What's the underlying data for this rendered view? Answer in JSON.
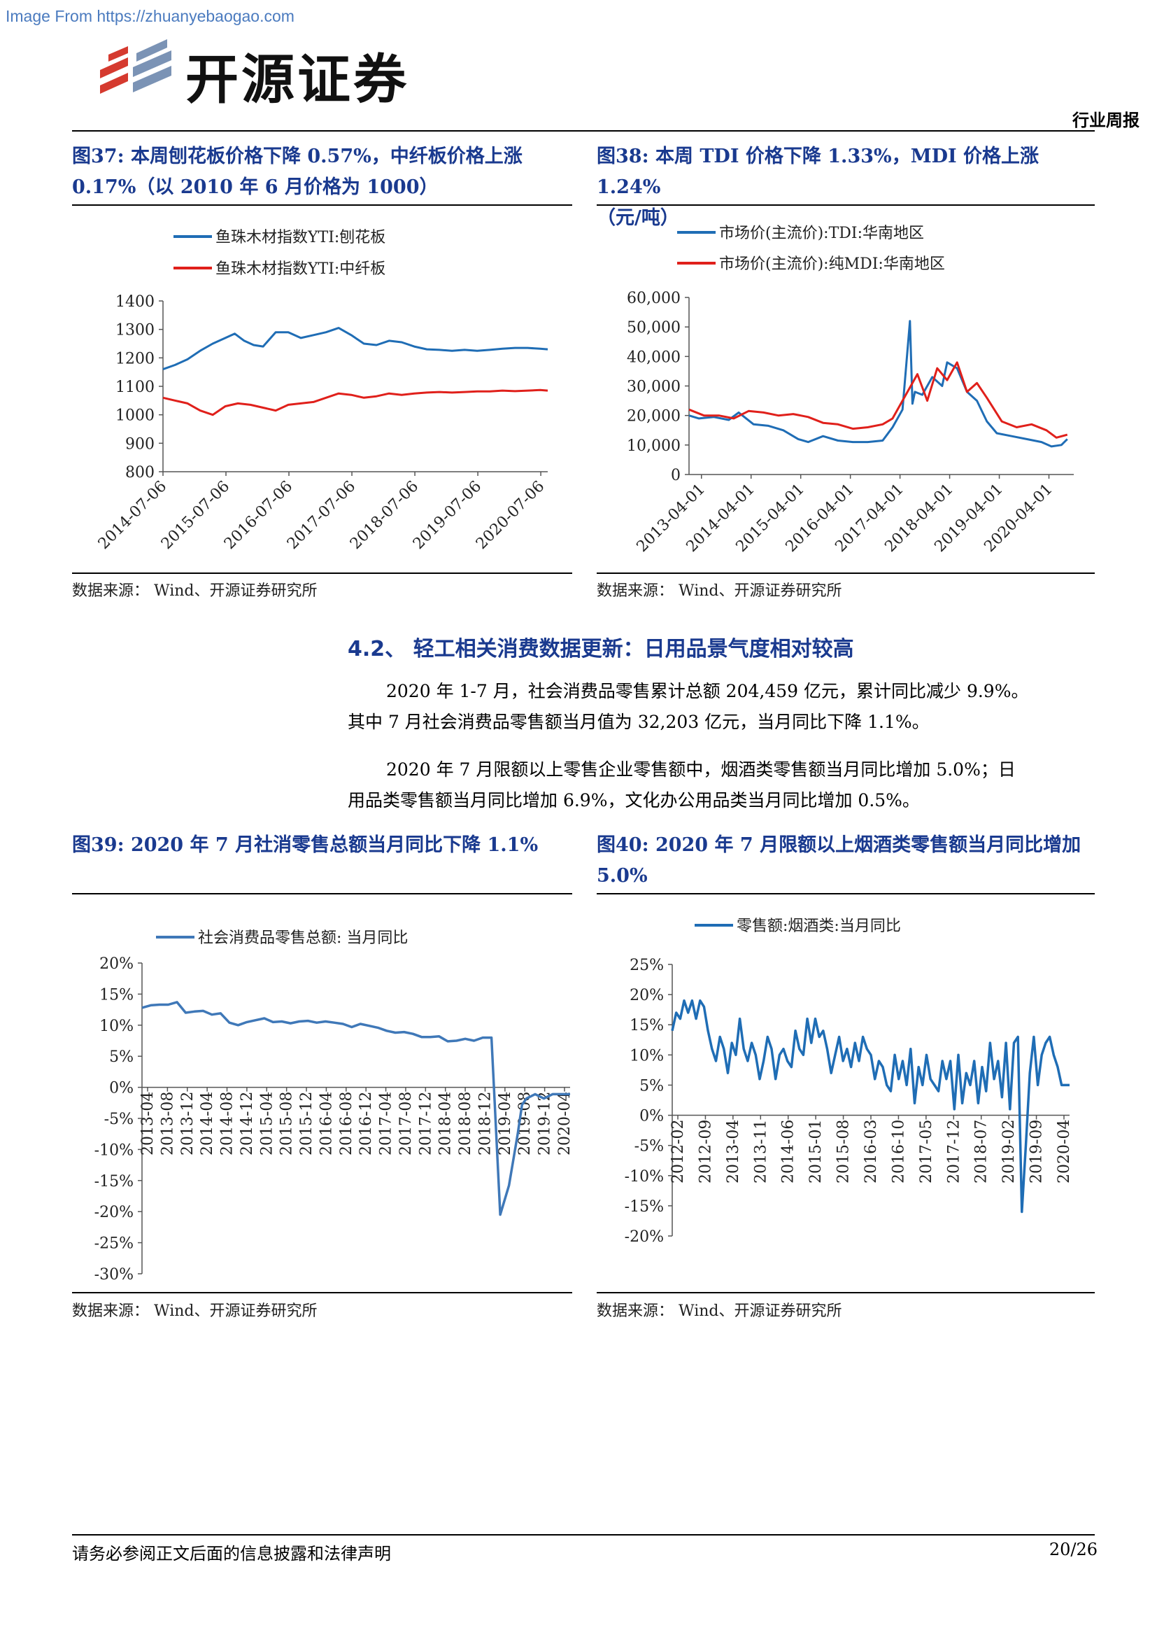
{
  "watermark": "Image From https://zhuanyebaogao.com",
  "brand": {
    "name": "开源证券"
  },
  "report_type": "行业周报",
  "figures": {
    "f37": {
      "title_l1": "图37:  本周刨花板价格下降  0.57%，中纤板价格上涨",
      "title_l2": "0.17%（以 2010 年 6 月价格为 1000）",
      "source": "数据来源： Wind、开源证券研究所"
    },
    "f38": {
      "title_l1": "图38:  本周 TDI 价格下降 1.33%，MDI 价格上涨 1.24%",
      "title_l2": "（元/吨）",
      "source": "数据来源： Wind、开源证券研究所"
    },
    "f39": {
      "title_l1": "图39:  2020 年 7 月社消零售总额当月同比下降 1.1%",
      "source": "数据来源： Wind、开源证券研究所"
    },
    "f40": {
      "title_l1": "图40:  2020 年 7 月限额以上烟酒类零售额当月同比增加",
      "title_l2": "5.0%",
      "source": "数据来源： Wind、开源证券研究所"
    }
  },
  "section": {
    "title": "4.2、  轻工相关消费数据更新：日用品景气度相对较高"
  },
  "paragraphs": {
    "p1_l1": "2020 年 1-7 月，社会消费品零售累计总额 204,459 亿元，累计同比减少 9.9%。",
    "p1_l2": "其中 7 月社会消费品零售额当月值为 32,203 亿元，当月同比下降 1.1%。",
    "p2_l1": "2020 年 7 月限额以上零售企业零售额中，烟酒类零售额当月同比增加 5.0%；日",
    "p2_l2": "用品类零售额当月同比增加 6.9%，文化办公用品类当月同比增加 0.5%。"
  },
  "footer": {
    "disclaimer": "请务必参阅正文后面的信息披露和法律声明",
    "page": "20/26"
  },
  "chart_data": [
    {
      "id": "fig37",
      "type": "line",
      "legend": [
        "鱼珠木材指数YTI:刨花板",
        "鱼珠木材指数YTI:中纤板"
      ],
      "colors": [
        "#1f6db5",
        "#e0201b"
      ],
      "yticks": [
        "1400",
        "1300",
        "1200",
        "1100",
        "1000",
        "900",
        "800"
      ],
      "ylim": [
        800,
        1400
      ],
      "xticks": [
        "2014-07-06",
        "2015-07-06",
        "2016-07-06",
        "2017-07-06",
        "2018-07-06",
        "2019-07-06",
        "2020-07-06"
      ],
      "xlim": [
        2014.51,
        2020.62
      ],
      "series": [
        {
          "name": "鱼珠木材指数YTI:刨花板",
          "x": [
            2014.51,
            2014.7,
            2014.9,
            2015.1,
            2015.3,
            2015.5,
            2015.65,
            2015.8,
            2015.95,
            2016.1,
            2016.3,
            2016.5,
            2016.7,
            2016.9,
            2017.1,
            2017.3,
            2017.5,
            2017.7,
            2017.9,
            2018.1,
            2018.3,
            2018.5,
            2018.7,
            2018.9,
            2019.1,
            2019.3,
            2019.5,
            2019.7,
            2019.9,
            2020.1,
            2020.3,
            2020.5,
            2020.62
          ],
          "y": [
            1160,
            1175,
            1195,
            1225,
            1250,
            1270,
            1285,
            1260,
            1245,
            1240,
            1290,
            1290,
            1270,
            1280,
            1290,
            1305,
            1280,
            1250,
            1245,
            1260,
            1255,
            1240,
            1230,
            1228,
            1225,
            1228,
            1225,
            1228,
            1232,
            1235,
            1235,
            1232,
            1230
          ]
        },
        {
          "name": "鱼珠木材指数YTI:中纤板",
          "x": [
            2014.51,
            2014.7,
            2014.9,
            2015.1,
            2015.3,
            2015.5,
            2015.7,
            2015.9,
            2016.1,
            2016.3,
            2016.5,
            2016.7,
            2016.9,
            2017.1,
            2017.3,
            2017.5,
            2017.7,
            2017.9,
            2018.1,
            2018.3,
            2018.5,
            2018.7,
            2018.9,
            2019.1,
            2019.3,
            2019.5,
            2019.7,
            2019.9,
            2020.1,
            2020.3,
            2020.5,
            2020.62
          ],
          "y": [
            1060,
            1050,
            1040,
            1015,
            1000,
            1030,
            1040,
            1035,
            1025,
            1015,
            1035,
            1040,
            1045,
            1060,
            1075,
            1070,
            1060,
            1065,
            1075,
            1070,
            1075,
            1078,
            1080,
            1078,
            1080,
            1082,
            1082,
            1085,
            1083,
            1085,
            1087,
            1085
          ]
        }
      ]
    },
    {
      "id": "fig38",
      "type": "line",
      "legend": [
        "市场价(主流价):TDI:华南地区",
        "市场价(主流价):纯MDI:华南地区"
      ],
      "colors": [
        "#1f6db5",
        "#e0201b"
      ],
      "yticks": [
        "60,000",
        "50,000",
        "40,000",
        "30,000",
        "20,000",
        "10,000",
        "0"
      ],
      "ylim": [
        0,
        60000
      ],
      "xticks": [
        "2013-04-01",
        "2014-04-01",
        "2015-04-01",
        "2016-04-01",
        "2017-04-01",
        "2018-04-01",
        "2019-04-01",
        "2020-04-01"
      ],
      "xlim": [
        2013.0,
        2020.75
      ],
      "series": [
        {
          "name": "市场价(主流价):TDI:华南地区",
          "x": [
            2013.0,
            2013.2,
            2013.5,
            2013.8,
            2014.0,
            2014.3,
            2014.6,
            2014.9,
            2015.2,
            2015.4,
            2015.7,
            2016.0,
            2016.3,
            2016.6,
            2016.9,
            2017.1,
            2017.3,
            2017.45,
            2017.5,
            2017.55,
            2017.7,
            2017.9,
            2018.1,
            2018.2,
            2018.4,
            2018.6,
            2018.8,
            2019.0,
            2019.2,
            2019.5,
            2019.8,
            2020.1,
            2020.3,
            2020.5,
            2020.62
          ],
          "y": [
            20000,
            19000,
            19500,
            18500,
            21000,
            17000,
            16500,
            15000,
            12000,
            11000,
            13000,
            11500,
            11000,
            11000,
            11500,
            16000,
            22000,
            52000,
            24000,
            28000,
            27000,
            33000,
            30000,
            38000,
            36000,
            28000,
            25000,
            18000,
            14000,
            13000,
            12000,
            11000,
            9500,
            10000,
            12000
          ]
        },
        {
          "name": "市场价(主流价):纯MDI:华南地区",
          "x": [
            2013.0,
            2013.3,
            2013.6,
            2013.9,
            2014.2,
            2014.5,
            2014.8,
            2015.1,
            2015.4,
            2015.7,
            2016.0,
            2016.3,
            2016.6,
            2016.9,
            2017.1,
            2017.4,
            2017.6,
            2017.8,
            2018.0,
            2018.2,
            2018.4,
            2018.6,
            2018.8,
            2019.0,
            2019.3,
            2019.6,
            2019.9,
            2020.2,
            2020.4,
            2020.62
          ],
          "y": [
            22000,
            20000,
            20000,
            19000,
            21500,
            21000,
            20000,
            20500,
            19500,
            17500,
            17000,
            15500,
            16000,
            17000,
            19000,
            28000,
            34000,
            25000,
            36000,
            32000,
            38000,
            28000,
            31000,
            26000,
            18000,
            16000,
            17000,
            15000,
            12500,
            13500
          ]
        }
      ]
    },
    {
      "id": "fig39",
      "type": "line",
      "legend": [
        "社会消费品零售总额: 当月同比"
      ],
      "colors": [
        "#3f78b8"
      ],
      "yticks": [
        "20%",
        "15%",
        "10%",
        "5%",
        "0%",
        "-5%",
        "-10%",
        "-15%",
        "-20%",
        "-25%",
        "-30%"
      ],
      "ylim": [
        -30,
        20
      ],
      "xticks": [
        "2013-04",
        "2013-08",
        "2013-12",
        "2014-04",
        "2014-08",
        "2014-12",
        "2015-04",
        "2015-08",
        "2015-12",
        "2016-04",
        "2016-08",
        "2016-12",
        "2017-04",
        "2017-08",
        "2017-12",
        "2018-04",
        "2018-08",
        "2018-12",
        "2019-04",
        "2019-08",
        "2019-12",
        "2020-04"
      ],
      "series": [
        {
          "name": "社会消费品零售总额: 当月同比",
          "x": [
            0,
            2,
            4,
            6,
            8,
            10,
            12,
            14,
            16,
            18,
            20,
            22,
            24,
            26,
            28,
            30,
            32,
            34,
            36,
            38,
            40,
            42,
            44,
            46,
            48,
            50,
            52,
            54,
            56,
            58,
            60,
            62,
            64,
            66,
            68,
            70,
            72,
            74,
            76,
            78,
            80,
            82,
            84,
            86,
            87,
            88,
            90,
            92,
            94,
            96,
            98
          ],
          "y": [
            12.8,
            13.2,
            13.3,
            13.3,
            13.7,
            12.0,
            12.2,
            12.3,
            11.7,
            11.9,
            10.4,
            10.0,
            10.5,
            10.8,
            11.1,
            10.5,
            10.6,
            10.3,
            10.6,
            10.7,
            10.4,
            10.6,
            10.4,
            10.2,
            9.7,
            10.2,
            9.9,
            9.6,
            9.1,
            8.8,
            8.9,
            8.6,
            8.1,
            8.1,
            8.2,
            7.4,
            7.5,
            7.8,
            7.5,
            8.0,
            8.0,
            -20.5,
            -15.8,
            -7.5,
            -2.8,
            -1.8,
            -1.1,
            -1.8,
            -1.1,
            -1.1,
            -1.1
          ]
        }
      ]
    },
    {
      "id": "fig40",
      "type": "line",
      "legend": [
        "零售额:烟酒类:当月同比"
      ],
      "colors": [
        "#1f6db5"
      ],
      "yticks": [
        "25%",
        "20%",
        "15%",
        "10%",
        "5%",
        "0%",
        "-5%",
        "-10%",
        "-15%",
        "-20%"
      ],
      "ylim": [
        -20,
        25
      ],
      "xticks": [
        "2012-02",
        "2012-09",
        "2013-04",
        "2013-11",
        "2014-06",
        "2015-01",
        "2015-08",
        "2016-03",
        "2016-10",
        "2017-05",
        "2017-12",
        "2018-07",
        "2019-02",
        "2019-09",
        "2020-04"
      ],
      "series": [
        {
          "name": "零售额:烟酒类:当月同比",
          "x": [
            0,
            1,
            2,
            3,
            4,
            5,
            6,
            7,
            8,
            9,
            10,
            11,
            12,
            13,
            14,
            15,
            16,
            17,
            18,
            19,
            20,
            21,
            22,
            23,
            24,
            25,
            26,
            27,
            28,
            29,
            30,
            31,
            32,
            33,
            34,
            35,
            36,
            37,
            38,
            39,
            40,
            41,
            42,
            43,
            44,
            45,
            46,
            47,
            48,
            49,
            50,
            51,
            52,
            53,
            54,
            55,
            56,
            57,
            58,
            59,
            60,
            61,
            62,
            63,
            64,
            65,
            66,
            67,
            68,
            69,
            70,
            71,
            72,
            73,
            74,
            75,
            76,
            77,
            78,
            79,
            80,
            81,
            82,
            83,
            84,
            85,
            86,
            87,
            88,
            89,
            90,
            91,
            92,
            93,
            94,
            95,
            96,
            97,
            98,
            99,
            100
          ],
          "y": [
            14,
            17,
            16,
            19,
            17,
            19,
            16,
            19,
            18,
            14,
            11,
            9,
            13,
            11,
            7,
            12,
            10,
            16,
            11,
            9,
            12,
            10,
            6,
            9,
            13,
            11,
            6,
            10,
            11,
            9,
            8,
            14,
            11,
            10,
            16,
            12,
            16,
            13,
            14,
            11,
            7,
            10,
            13,
            9,
            11,
            8,
            12,
            9,
            13,
            11,
            10,
            6,
            9,
            8,
            5,
            4,
            10,
            6,
            9,
            5,
            11,
            2,
            8,
            5,
            10,
            6,
            5,
            4,
            9,
            6,
            9,
            1,
            10,
            2,
            7,
            5,
            9,
            2,
            8,
            4,
            12,
            6,
            9,
            3,
            12,
            1,
            12,
            13,
            -16,
            -5,
            7,
            13,
            5,
            10,
            12,
            13,
            10,
            8,
            5,
            5,
            5
          ]
        }
      ]
    }
  ]
}
